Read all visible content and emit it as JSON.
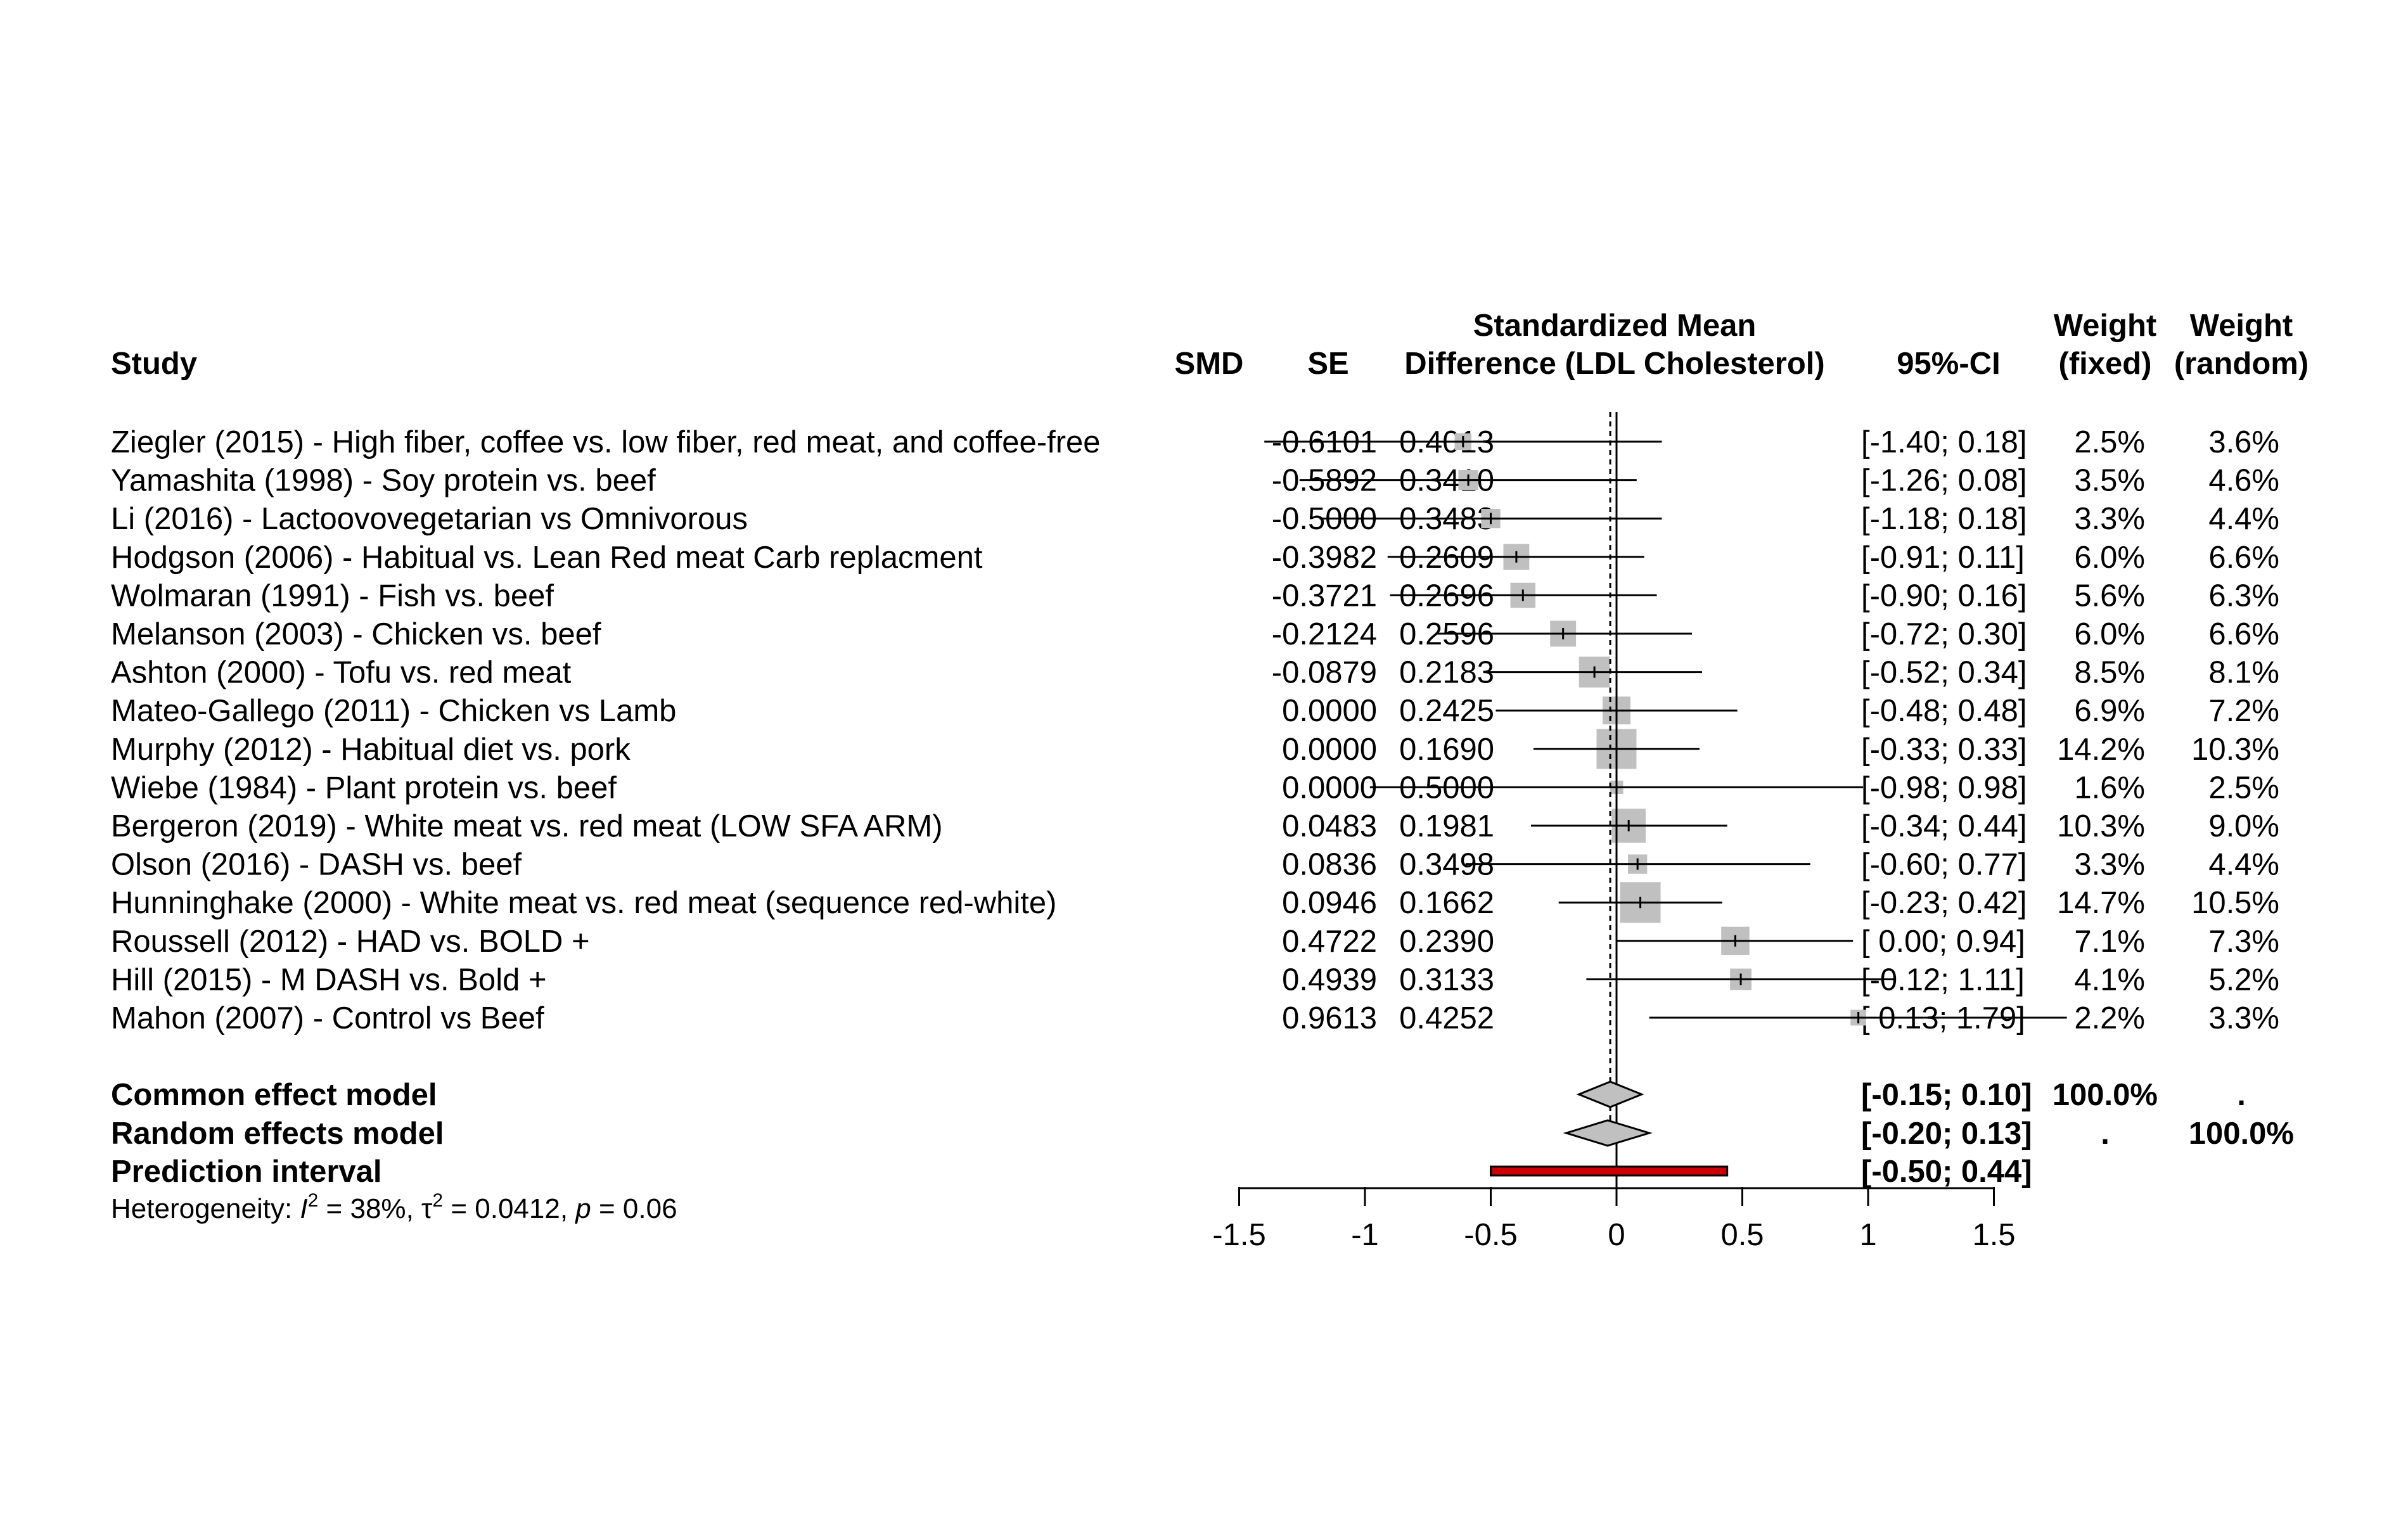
{
  "chart_data": {
    "type": "forest",
    "headers": {
      "study": "Study",
      "smd": "SMD",
      "se": "SE",
      "plot_line1": "Standardized Mean",
      "plot_line2": "Difference (LDL Cholesterol)",
      "ci": "95%-CI",
      "wf_line1": "Weight",
      "wf_line2": "(fixed)",
      "wr_line1": "Weight",
      "wr_line2": "(random)"
    },
    "studies": [
      {
        "label": "Ziegler (2015) - High fiber, coffee vs. low fiber, red meat, and coffee-free",
        "smd_text": "-0.6101",
        "se_text": "0.4013",
        "ci_text": "[-1.40; 0.18]",
        "wf_text": "2.5%",
        "wr_text": "3.6%",
        "smd": -0.6101,
        "lo": -1.4,
        "hi": 0.18,
        "wf": 2.5
      },
      {
        "label": "Yamashita (1998) - Soy protein vs. beef",
        "smd_text": "-0.5892",
        "se_text": "0.3410",
        "ci_text": "[-1.26; 0.08]",
        "wf_text": "3.5%",
        "wr_text": "4.6%",
        "smd": -0.5892,
        "lo": -1.26,
        "hi": 0.08,
        "wf": 3.5
      },
      {
        "label": "Li (2016) - Lactoovovegetarian vs Omnivorous",
        "smd_text": "-0.5000",
        "se_text": "0.3483",
        "ci_text": "[-1.18; 0.18]",
        "wf_text": "3.3%",
        "wr_text": "4.4%",
        "smd": -0.5,
        "lo": -1.18,
        "hi": 0.18,
        "wf": 3.3
      },
      {
        "label": "Hodgson (2006) - Habitual vs. Lean Red meat Carb replacment",
        "smd_text": "-0.3982",
        "se_text": "0.2609",
        "ci_text": "[-0.91; 0.11]",
        "wf_text": "6.0%",
        "wr_text": "6.6%",
        "smd": -0.3982,
        "lo": -0.91,
        "hi": 0.11,
        "wf": 6.0
      },
      {
        "label": "Wolmaran (1991) - Fish vs. beef",
        "smd_text": "-0.3721",
        "se_text": "0.2696",
        "ci_text": "[-0.90; 0.16]",
        "wf_text": "5.6%",
        "wr_text": "6.3%",
        "smd": -0.3721,
        "lo": -0.9,
        "hi": 0.16,
        "wf": 5.6
      },
      {
        "label": "Melanson (2003) - Chicken vs. beef",
        "smd_text": "-0.2124",
        "se_text": "0.2596",
        "ci_text": "[-0.72; 0.30]",
        "wf_text": "6.0%",
        "wr_text": "6.6%",
        "smd": -0.2124,
        "lo": -0.72,
        "hi": 0.3,
        "wf": 6.0
      },
      {
        "label": "Ashton (2000) - Tofu vs. red meat",
        "smd_text": "-0.0879",
        "se_text": "0.2183",
        "ci_text": "[-0.52; 0.34]",
        "wf_text": "8.5%",
        "wr_text": "8.1%",
        "smd": -0.0879,
        "lo": -0.52,
        "hi": 0.34,
        "wf": 8.5
      },
      {
        "label": "Mateo-Gallego (2011) - Chicken vs Lamb",
        "smd_text": "0.0000",
        "se_text": "0.2425",
        "ci_text": "[-0.48; 0.48]",
        "wf_text": "6.9%",
        "wr_text": "7.2%",
        "smd": 0.0,
        "lo": -0.48,
        "hi": 0.48,
        "wf": 6.9
      },
      {
        "label": "Murphy (2012) - Habitual diet vs. pork",
        "smd_text": "0.0000",
        "se_text": "0.1690",
        "ci_text": "[-0.33; 0.33]",
        "wf_text": "14.2%",
        "wr_text": "10.3%",
        "smd": 0.0,
        "lo": -0.33,
        "hi": 0.33,
        "wf": 14.2
      },
      {
        "label": "Wiebe (1984) - Plant protein vs. beef",
        "smd_text": "0.0000",
        "se_text": "0.5000",
        "ci_text": "[-0.98; 0.98]",
        "wf_text": "1.6%",
        "wr_text": "2.5%",
        "smd": 0.0,
        "lo": -0.98,
        "hi": 0.98,
        "wf": 1.6
      },
      {
        "label": "Bergeron (2019) - White meat vs. red meat   (LOW SFA ARM)",
        "smd_text": "0.0483",
        "se_text": "0.1981",
        "ci_text": "[-0.34; 0.44]",
        "wf_text": "10.3%",
        "wr_text": "9.0%",
        "smd": 0.0483,
        "lo": -0.34,
        "hi": 0.44,
        "wf": 10.3
      },
      {
        "label": "Olson (2016) - DASH vs. beef",
        "smd_text": "0.0836",
        "se_text": "0.3498",
        "ci_text": "[-0.60; 0.77]",
        "wf_text": "3.3%",
        "wr_text": "4.4%",
        "smd": 0.0836,
        "lo": -0.6,
        "hi": 0.77,
        "wf": 3.3
      },
      {
        "label": "Hunninghake (2000) - White meat vs. red meat (sequence red-white)",
        "smd_text": "0.0946",
        "se_text": "0.1662",
        "ci_text": "[-0.23; 0.42]",
        "wf_text": "14.7%",
        "wr_text": "10.5%",
        "smd": 0.0946,
        "lo": -0.23,
        "hi": 0.42,
        "wf": 14.7
      },
      {
        "label": "Roussell (2012) - HAD vs. BOLD +",
        "smd_text": "0.4722",
        "se_text": "0.2390",
        "ci_text": "[ 0.00; 0.94]",
        "wf_text": "7.1%",
        "wr_text": "7.3%",
        "smd": 0.4722,
        "lo": 0.0,
        "hi": 0.94,
        "wf": 7.1
      },
      {
        "label": "Hill (2015) - M DASH vs. Bold +",
        "smd_text": "0.4939",
        "se_text": "0.3133",
        "ci_text": "[-0.12; 1.11]",
        "wf_text": "4.1%",
        "wr_text": "5.2%",
        "smd": 0.4939,
        "lo": -0.12,
        "hi": 1.11,
        "wf": 4.1
      },
      {
        "label": "Mahon (2007) - Control vs Beef",
        "smd_text": "0.9613",
        "se_text": "0.4252",
        "ci_text": "[ 0.13; 1.79]",
        "wf_text": "2.2%",
        "wr_text": "3.3%",
        "smd": 0.9613,
        "lo": 0.13,
        "hi": 1.79,
        "wf": 2.2
      }
    ],
    "summaries": [
      {
        "label": "Common effect model",
        "ci_text": "[-0.15; 0.10]",
        "wf_text": "100.0%",
        "wr_text": ".",
        "est": -0.025,
        "lo": -0.15,
        "hi": 0.1,
        "kind": "diamond"
      },
      {
        "label": "Random effects model",
        "ci_text": "[-0.20; 0.13]",
        "wf_text": ".",
        "wr_text": "100.0%",
        "est": -0.035,
        "lo": -0.2,
        "hi": 0.13,
        "kind": "diamond"
      },
      {
        "label": "Prediction interval",
        "ci_text": "[-0.50; 0.44]",
        "wf_text": "",
        "wr_text": "",
        "lo": -0.5,
        "hi": 0.44,
        "kind": "bar"
      }
    ],
    "heterogeneity": {
      "prefix": "Heterogeneity: ",
      "i2_sym": "I",
      "i2_value": "38%",
      "tau2_sym": "τ",
      "tau2_value": "0.0412",
      "p_sym": "p",
      "p_value": "0.06"
    },
    "xaxis": {
      "ticks": [
        -1.5,
        -1,
        -0.5,
        0,
        0.5,
        1,
        1.5
      ],
      "tick_labels": [
        "-1.5",
        "-1",
        "-0.5",
        "0",
        "0.5",
        "1",
        "1.5"
      ],
      "xlim": [
        -1.5,
        1.5
      ]
    },
    "colors": {
      "square": "#c0c0c0",
      "diamond": "#c0c0c0",
      "prediction": "#cc0000",
      "line": "#000000"
    }
  }
}
